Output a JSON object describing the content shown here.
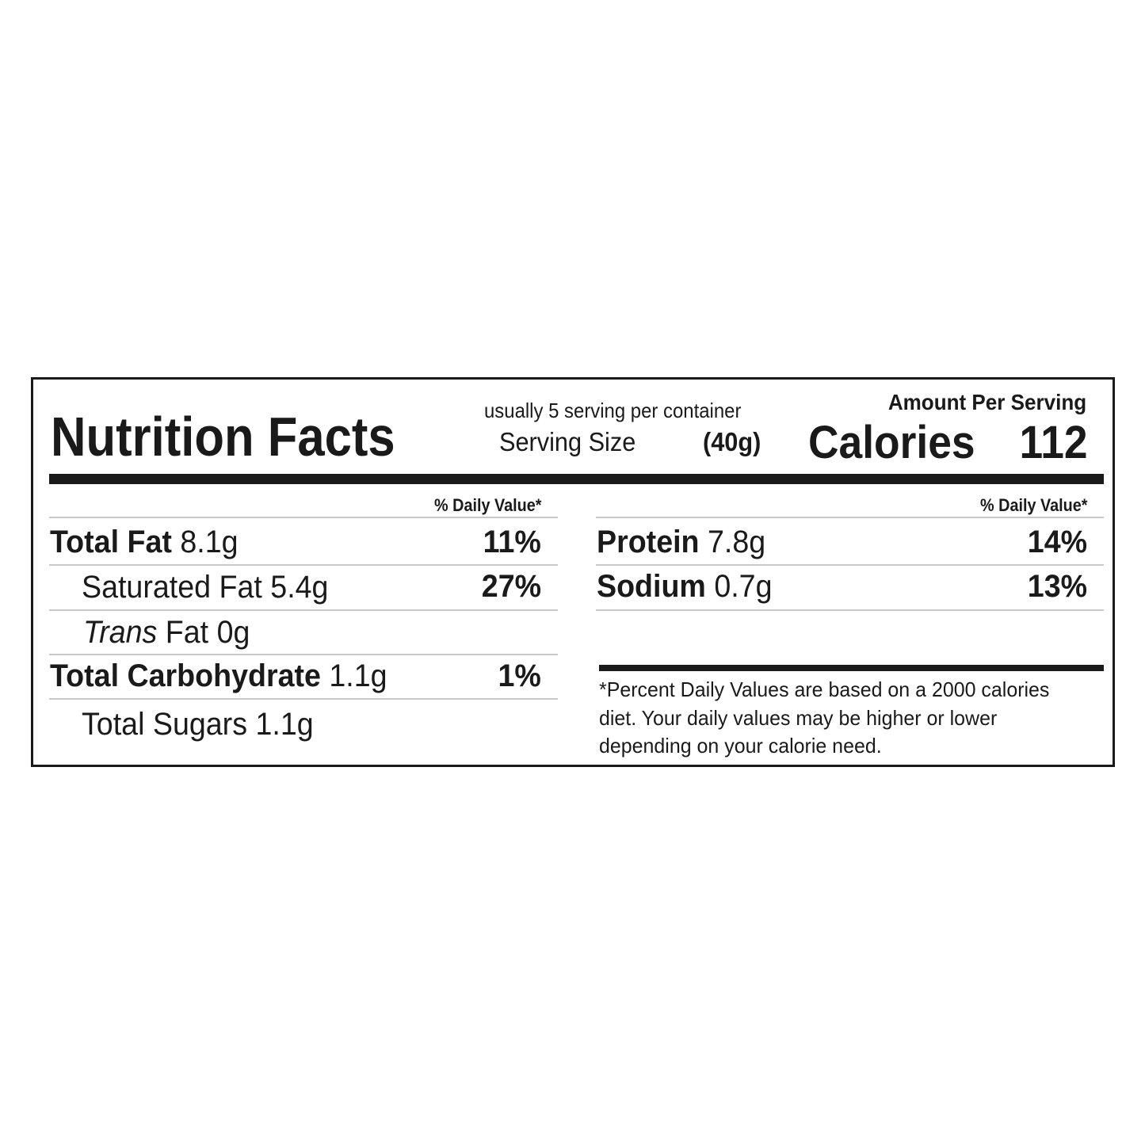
{
  "header": {
    "title": "Nutrition Facts",
    "servings_per_container": "usually 5 serving per container",
    "serving_size_label": "Serving Size",
    "serving_size_value": "(40g)",
    "amount_per_serving": "Amount Per Serving",
    "calories_label": "Calories",
    "calories_value": "112"
  },
  "left": {
    "dv_header": "% Daily Value*",
    "rows": [
      {
        "label": "Total Fat",
        "amount": "8.1g",
        "dv": "11%"
      },
      {
        "label": "Saturated Fat",
        "amount": "5.4g",
        "dv": "27%"
      },
      {
        "label": "Trans",
        "label_rest": "Fat",
        "amount": "0g",
        "dv": ""
      },
      {
        "label": "Total Carbohydrate",
        "amount": "1.1g",
        "dv": "1%"
      },
      {
        "label": "Total Sugars",
        "amount": "1.1g",
        "dv": ""
      }
    ]
  },
  "right": {
    "dv_header": "% Daily Value*",
    "rows": [
      {
        "label": "Protein",
        "amount": "7.8g",
        "dv": "14%"
      },
      {
        "label": "Sodium",
        "amount": "0.7g",
        "dv": "13%"
      }
    ],
    "footnote": "*Percent Daily Values are based on a 2000 calories diet. Your daily  values may be higher or lower depending on your calorie need."
  }
}
